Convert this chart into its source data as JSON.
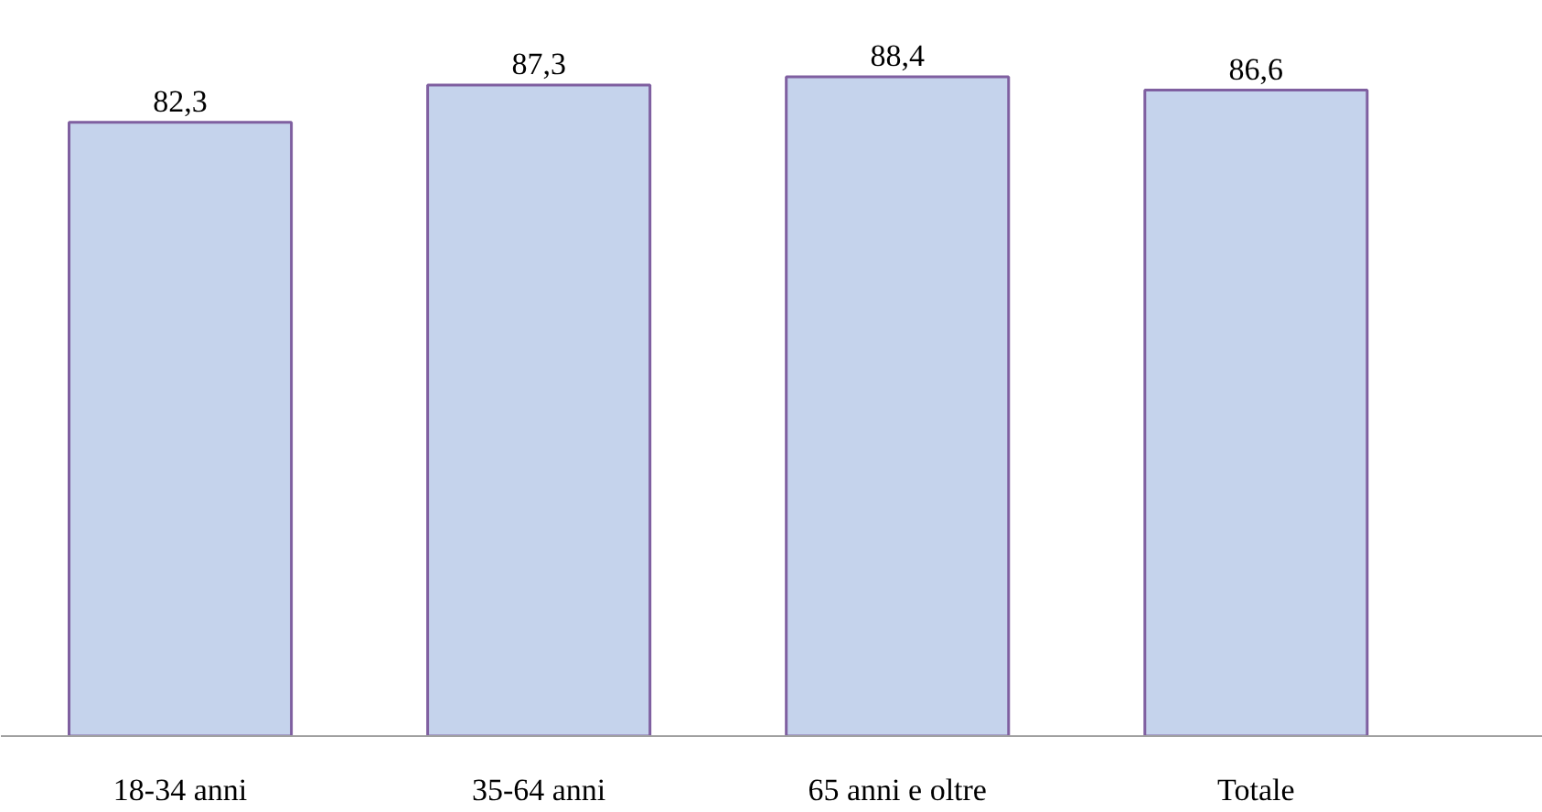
{
  "chart_data": {
    "type": "bar",
    "categories": [
      "18-34 anni",
      "35-64 anni",
      "65 anni e oltre",
      "Totale"
    ],
    "values": [
      82.3,
      87.3,
      88.4,
      86.6
    ],
    "value_labels": [
      "82,3",
      "87,3",
      "88,4",
      "86,6"
    ],
    "color": "#c5d3ec",
    "grid": false
  }
}
